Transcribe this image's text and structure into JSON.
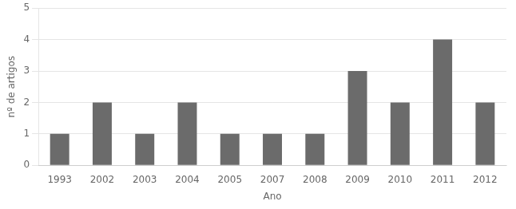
{
  "chart_data": {
    "type": "bar",
    "categories": [
      "1993",
      "2002",
      "2003",
      "2004",
      "2005",
      "2007",
      "2008",
      "2009",
      "2010",
      "2011",
      "2012"
    ],
    "values": [
      1,
      2,
      1,
      2,
      1,
      1,
      1,
      3,
      2,
      4,
      2
    ],
    "color": "#6b6b6b",
    "xlabel": "Ano",
    "ylabel": "nº de artigos",
    "ylim": [
      0,
      5
    ],
    "yticks": [
      0,
      1,
      2,
      3,
      4,
      5
    ],
    "grid": true
  }
}
